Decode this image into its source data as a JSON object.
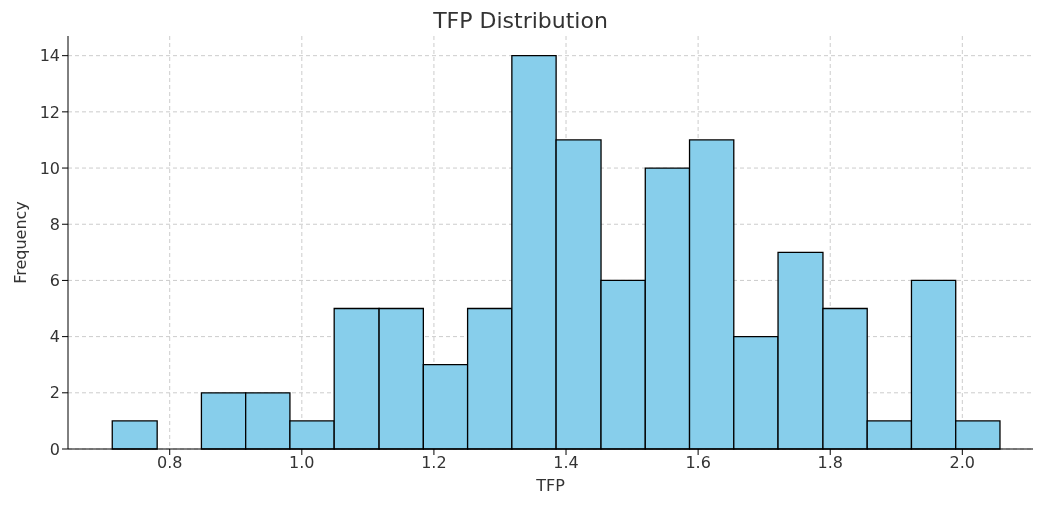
{
  "chart_data": {
    "type": "histogram",
    "title": "TFP Distribution",
    "xlabel": "TFP",
    "ylabel": "Frequency",
    "bins": [
      0.713,
      0.781,
      0.848,
      0.915,
      0.982,
      1.049,
      1.117,
      1.184,
      1.251,
      1.318,
      1.385,
      1.453,
      1.52,
      1.587,
      1.654,
      1.721,
      1.789,
      1.856,
      1.923,
      1.99,
      2.057
    ],
    "values": [
      1,
      0,
      2,
      2,
      1,
      5,
      5,
      3,
      5,
      14,
      11,
      6,
      10,
      11,
      4,
      7,
      5,
      1,
      6,
      1
    ],
    "color": "#87ceeb",
    "xlim": [
      0.646,
      2.107
    ],
    "xticks": [
      0.8,
      {
        "value": 1.0,
        "label": "1.0"
      },
      1.2,
      1.4,
      1.6,
      1.8,
      {
        "value": 2.0,
        "label": "2.0"
      }
    ],
    "ylim": [
      0,
      14.7
    ],
    "yticks": [
      0,
      2,
      4,
      6,
      8,
      10,
      12,
      14
    ],
    "grid": true
  }
}
